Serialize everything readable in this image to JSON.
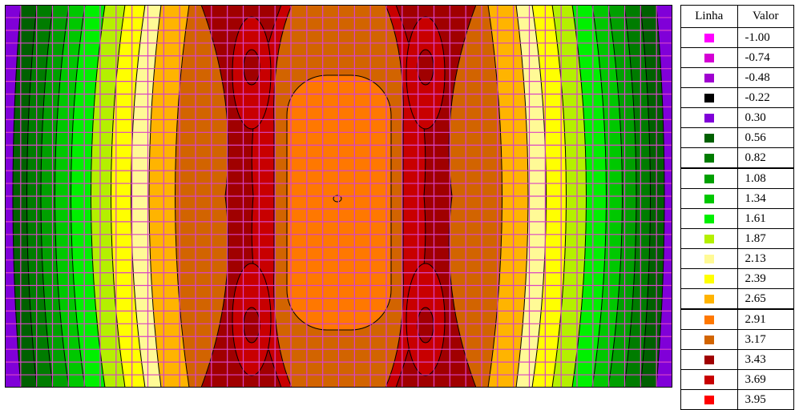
{
  "chart_data": {
    "type": "heatmap",
    "title": "",
    "xlabel": "",
    "ylabel": "",
    "grid": true,
    "grid_color": "#d844c8",
    "contour_line_color": "#000000",
    "legend_placement": "right",
    "legend": {
      "header_line": "Linha",
      "header_value": "Valor",
      "entries": [
        {
          "value": "-1.00",
          "color": "#ff00ff"
        },
        {
          "value": "-0.74",
          "color": "#d400d4"
        },
        {
          "value": "-0.48",
          "color": "#a000d0"
        },
        {
          "value": "-0.22",
          "color": "#000000"
        },
        {
          "value": "0.30",
          "color": "#8000d8"
        },
        {
          "value": "0.56",
          "color": "#006000"
        },
        {
          "value": "0.82",
          "color": "#007c00"
        },
        {
          "value": "1.08",
          "color": "#00a000"
        },
        {
          "value": "1.34",
          "color": "#00c800"
        },
        {
          "value": "1.61",
          "color": "#00f000"
        },
        {
          "value": "1.87",
          "color": "#b4f000"
        },
        {
          "value": "2.13",
          "color": "#fffa96"
        },
        {
          "value": "2.39",
          "color": "#ffff00"
        },
        {
          "value": "2.65",
          "color": "#ffb400"
        },
        {
          "value": "2.91",
          "color": "#ff7800"
        },
        {
          "value": "3.17",
          "color": "#d26400"
        },
        {
          "value": "3.43",
          "color": "#a00000"
        },
        {
          "value": "3.69",
          "color": "#c80000"
        },
        {
          "value": "3.95",
          "color": "#ff0000"
        }
      ],
      "thick_borders_before": [
        "1.08",
        "2.91"
      ]
    }
  }
}
